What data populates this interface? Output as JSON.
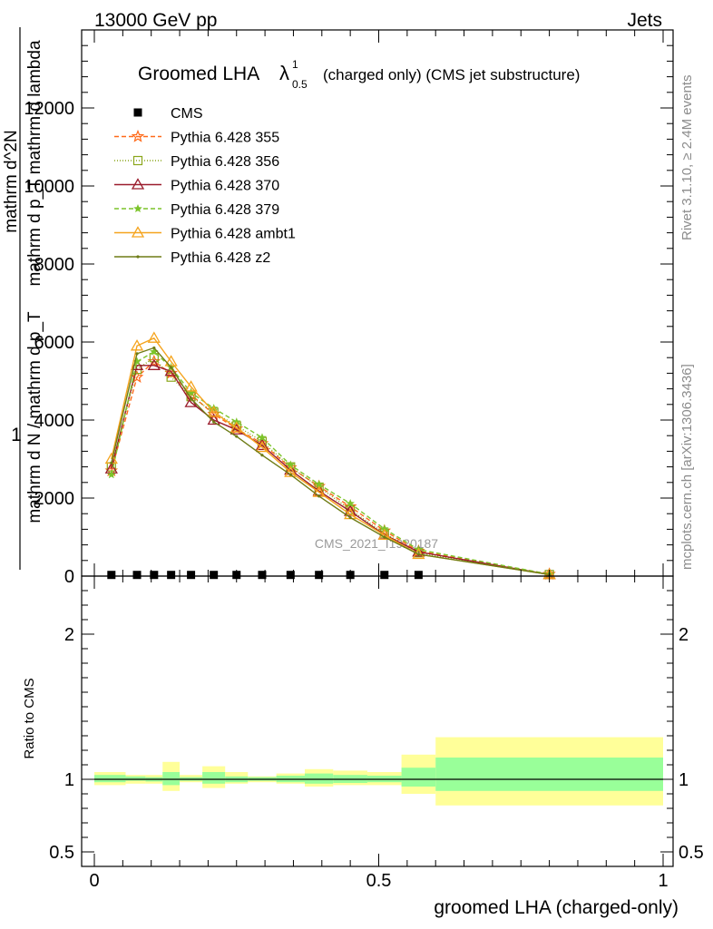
{
  "header": {
    "left": "13000 GeV pp",
    "right": "Jets"
  },
  "title": {
    "main": "Groomed LHA",
    "symbol": "λ",
    "sup": "1",
    "sub": "0.5",
    "suffix": "(charged only) (CMS jet substructure)"
  },
  "side_text": {
    "rivet": "Rivet 3.1.10, ≥ 2.4M events",
    "mcplots": "mcplots.cern.ch [arXiv:1306.3436]"
  },
  "watermark": "CMS_2021_I1920187",
  "y_axis_label": {
    "numerator_one": "1",
    "denominator_one": "mathrm d N / mathrm d p_T",
    "numerator_two": "mathrm d^2N",
    "denominator_two": "mathrm d p_T mathrm d lambda"
  },
  "ratio_label": "Ratio to CMS",
  "x_axis_label": "groomed LHA (charged-only)",
  "colors": {
    "CMS": "#000000",
    "p355": "#ff6a1a",
    "p356": "#8aa61a",
    "p370": "#9a1c2c",
    "p379": "#7cc42a",
    "ambt1": "#f5a41e",
    "z2": "#6e7c16",
    "band_inner": "#99ff99",
    "band_outer": "#ffff99"
  },
  "chart_data": {
    "type": "line",
    "x_range": [
      0,
      1
    ],
    "main_ylim": [
      0,
      14000
    ],
    "main_yticks": [
      0,
      2000,
      4000,
      6000,
      8000,
      10000,
      12000
    ],
    "main_ytick_labels": [
      "0",
      "2000",
      "4000",
      "6000",
      "8000",
      "10000",
      "12000"
    ],
    "ratio_ylim": [
      0.4,
      2.4
    ],
    "ratio_yticks": [
      0.5,
      1,
      2
    ],
    "ratio_ytick_labels": [
      "0.5",
      "1",
      "2"
    ],
    "xticks": [
      0,
      0.5,
      1
    ],
    "xtick_labels": [
      "0",
      "0.5",
      "1"
    ],
    "legend_position": "top-left",
    "x": [
      0.03,
      0.075,
      0.105,
      0.135,
      0.17,
      0.21,
      0.25,
      0.295,
      0.345,
      0.395,
      0.45,
      0.51,
      0.57,
      0.8
    ],
    "series": [
      {
        "name": "CMS",
        "marker": "square",
        "dash": "none",
        "values": [
          30,
          30,
          30,
          30,
          30,
          30,
          30,
          30,
          30,
          30,
          30,
          30,
          30,
          null
        ]
      },
      {
        "name": "Pythia 6.428 355",
        "marker": "star-open",
        "dash": "5,3",
        "values": [
          2700,
          5100,
          5500,
          5200,
          4650,
          4150,
          3780,
          3400,
          2780,
          2300,
          1780,
          1160,
          640,
          50
        ]
      },
      {
        "name": "Pythia 6.428 356",
        "marker": "square-open",
        "dash": "1,2",
        "values": [
          2800,
          5300,
          5600,
          5100,
          4600,
          4200,
          3850,
          3450,
          2800,
          2280,
          1700,
          1100,
          600,
          40
        ]
      },
      {
        "name": "Pythia 6.428 370",
        "marker": "triangle-open",
        "dash": "none",
        "values": [
          2750,
          5400,
          5400,
          5250,
          4450,
          4000,
          3750,
          3350,
          2720,
          2180,
          1660,
          1060,
          620,
          40
        ]
      },
      {
        "name": "Pythia 6.428 379",
        "marker": "star-filled",
        "dash": "5,3",
        "values": [
          2600,
          5500,
          5750,
          5350,
          4700,
          4300,
          3950,
          3550,
          2850,
          2350,
          1860,
          1210,
          680,
          50
        ]
      },
      {
        "name": "Pythia 6.428 ambt1",
        "marker": "triangle-open",
        "dash": "none",
        "values": [
          3000,
          5900,
          6100,
          5500,
          4850,
          4200,
          3800,
          3300,
          2660,
          2150,
          1580,
          1050,
          560,
          40
        ]
      },
      {
        "name": "Pythia 6.428 z2",
        "marker": "dot",
        "dash": "none",
        "values": [
          2900,
          5700,
          5850,
          5350,
          4550,
          3950,
          3580,
          3100,
          2600,
          2050,
          1500,
          1000,
          560,
          40
        ]
      }
    ],
    "ratio_bands": [
      {
        "xlo": 0.0,
        "xhi": 0.055,
        "inner": [
          0.98,
          1.03
        ],
        "outer": [
          0.96,
          1.05
        ]
      },
      {
        "xlo": 0.055,
        "xhi": 0.09,
        "inner": [
          0.99,
          1.02
        ],
        "outer": [
          0.97,
          1.03
        ]
      },
      {
        "xlo": 0.09,
        "xhi": 0.12,
        "inner": [
          0.985,
          1.015
        ],
        "outer": [
          0.97,
          1.03
        ]
      },
      {
        "xlo": 0.12,
        "xhi": 0.15,
        "inner": [
          0.96,
          1.05
        ],
        "outer": [
          0.92,
          1.12
        ]
      },
      {
        "xlo": 0.15,
        "xhi": 0.19,
        "inner": [
          0.99,
          1.015
        ],
        "outer": [
          0.98,
          1.03
        ]
      },
      {
        "xlo": 0.19,
        "xhi": 0.23,
        "inner": [
          0.97,
          1.05
        ],
        "outer": [
          0.94,
          1.09
        ]
      },
      {
        "xlo": 0.23,
        "xhi": 0.27,
        "inner": [
          0.98,
          1.02
        ],
        "outer": [
          0.97,
          1.05
        ]
      },
      {
        "xlo": 0.27,
        "xhi": 0.32,
        "inner": [
          0.99,
          1.015
        ],
        "outer": [
          0.98,
          1.02
        ]
      },
      {
        "xlo": 0.32,
        "xhi": 0.37,
        "inner": [
          0.98,
          1.025
        ],
        "outer": [
          0.97,
          1.04
        ]
      },
      {
        "xlo": 0.37,
        "xhi": 0.42,
        "inner": [
          0.97,
          1.04
        ],
        "outer": [
          0.95,
          1.07
        ]
      },
      {
        "xlo": 0.42,
        "xhi": 0.48,
        "inner": [
          0.975,
          1.03
        ],
        "outer": [
          0.96,
          1.06
        ]
      },
      {
        "xlo": 0.48,
        "xhi": 0.54,
        "inner": [
          0.98,
          1.025
        ],
        "outer": [
          0.96,
          1.05
        ]
      },
      {
        "xlo": 0.54,
        "xhi": 0.6,
        "inner": [
          0.95,
          1.08
        ],
        "outer": [
          0.9,
          1.17
        ]
      },
      {
        "xlo": 0.6,
        "xhi": 1.0,
        "inner": [
          0.92,
          1.15
        ],
        "outer": [
          0.82,
          1.29
        ]
      }
    ]
  }
}
